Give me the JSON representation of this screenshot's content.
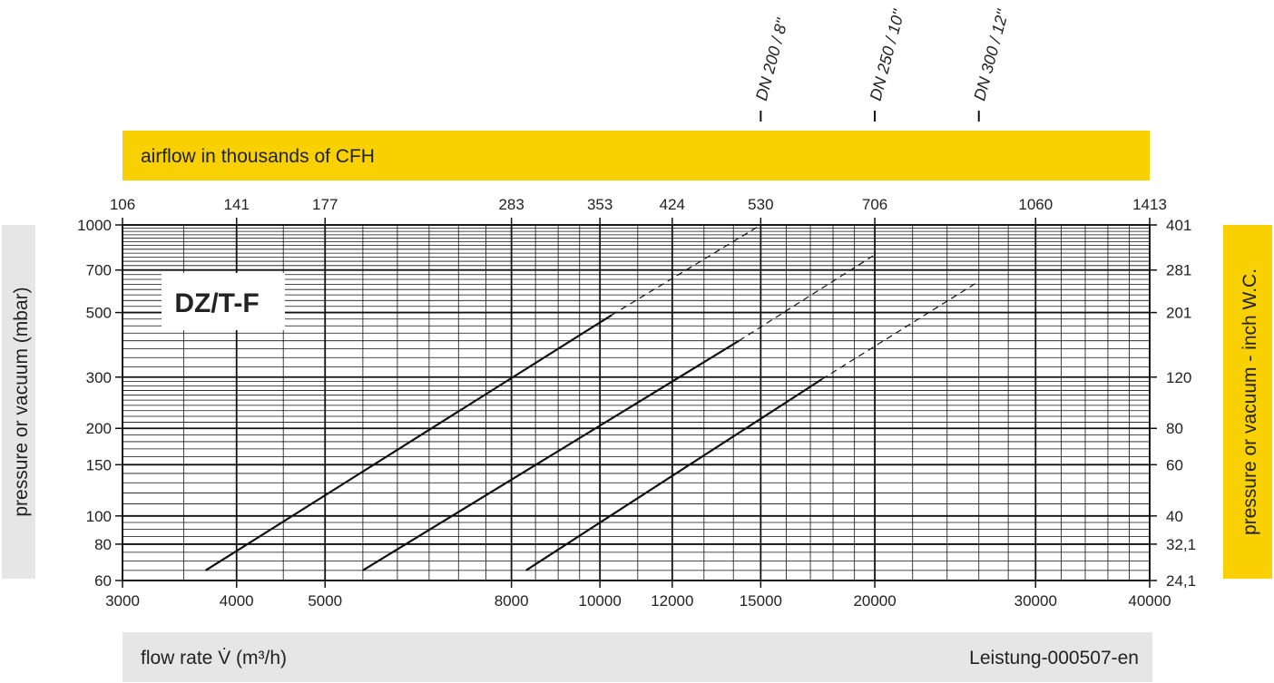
{
  "chart_data": {
    "type": "line",
    "model_label": "DZ/T-F",
    "x_scale": "log",
    "y_scale": "log",
    "xlim": [
      3000,
      40000
    ],
    "ylim": [
      60,
      1000
    ],
    "xlabel": "flow rate V̇  (m³/h)",
    "ylabel_left": "pressure or vacuum (mbar)",
    "ylabel_right": "pressure or vacuum - inch W.C.",
    "top_axis_title": "airflow in thousands of CFH",
    "document_id": "Leistung-000507-en",
    "x_ticks": [
      {
        "value": 3000,
        "label": "3000"
      },
      {
        "value": 4000,
        "label": "4000"
      },
      {
        "value": 5000,
        "label": "5000"
      },
      {
        "value": 8000,
        "label": "8000"
      },
      {
        "value": 10000,
        "label": "10000"
      },
      {
        "value": 12000,
        "label": "12000"
      },
      {
        "value": 15000,
        "label": "15000"
      },
      {
        "value": 20000,
        "label": "20000"
      },
      {
        "value": 30000,
        "label": "30000"
      },
      {
        "value": 40000,
        "label": "40000"
      }
    ],
    "x_top_ticks": [
      {
        "value": 3000,
        "label": "106"
      },
      {
        "value": 4000,
        "label": "141"
      },
      {
        "value": 5000,
        "label": "177"
      },
      {
        "value": 8000,
        "label": "283"
      },
      {
        "value": 10000,
        "label": "353"
      },
      {
        "value": 12000,
        "label": "424"
      },
      {
        "value": 15000,
        "label": "530"
      },
      {
        "value": 20000,
        "label": "706"
      },
      {
        "value": 30000,
        "label": "1060"
      },
      {
        "value": 40000,
        "label": "1413"
      }
    ],
    "y_ticks_left": [
      {
        "value": 1000,
        "label": "1000"
      },
      {
        "value": 700,
        "label": "700"
      },
      {
        "value": 500,
        "label": "500"
      },
      {
        "value": 300,
        "label": "300"
      },
      {
        "value": 200,
        "label": "200"
      },
      {
        "value": 150,
        "label": "150"
      },
      {
        "value": 100,
        "label": "100"
      },
      {
        "value": 80,
        "label": "80"
      },
      {
        "value": 60,
        "label": "60"
      }
    ],
    "y_ticks_right": [
      {
        "value": 1000,
        "label": "401"
      },
      {
        "value": 700,
        "label": "281"
      },
      {
        "value": 500,
        "label": "201"
      },
      {
        "value": 300,
        "label": "120"
      },
      {
        "value": 200,
        "label": "80"
      },
      {
        "value": 150,
        "label": "60"
      },
      {
        "value": 100,
        "label": "40"
      },
      {
        "value": 80,
        "label": "32,1"
      },
      {
        "value": 60,
        "label": "24,1"
      }
    ],
    "grid": true,
    "series": [
      {
        "name": "DN 200 / 8''",
        "marker_x": 15000,
        "solid": [
          [
            3700,
            65
          ],
          [
            10300,
            490
          ]
        ],
        "dashed": [
          [
            10300,
            490
          ],
          [
            15000,
            1000
          ]
        ]
      },
      {
        "name": "DN 250 / 10''",
        "marker_x": 20000,
        "solid": [
          [
            5500,
            65
          ],
          [
            14200,
            400
          ]
        ],
        "dashed": [
          [
            14200,
            400
          ],
          [
            20000,
            790
          ]
        ]
      },
      {
        "name": "DN 300 / 12''",
        "marker_x": 26000,
        "solid": [
          [
            8300,
            65
          ],
          [
            17500,
            295
          ]
        ],
        "dashed": [
          [
            17500,
            295
          ],
          [
            26000,
            640
          ]
        ]
      }
    ],
    "colors": {
      "banner_yellow": "#f9d000",
      "label_grey": "#e6e6e6",
      "line": "#111111",
      "grid": "#111111"
    }
  }
}
